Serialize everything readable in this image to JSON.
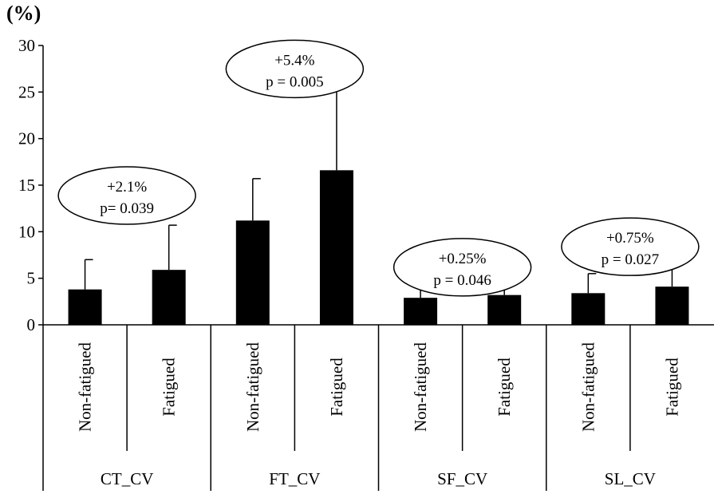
{
  "chart_data": {
    "type": "bar",
    "ylabel": "(%)",
    "ylim": [
      0,
      30
    ],
    "yticks": [
      0,
      5,
      10,
      15,
      20,
      25,
      30
    ],
    "groups": [
      {
        "name": "CT_CV",
        "annotation": {
          "change": "+2.1%",
          "p": "p= 0.039"
        },
        "bars": [
          {
            "label": "Non-fatigued",
            "value": 3.8,
            "error": 3.2
          },
          {
            "label": "Fatigued",
            "value": 5.9,
            "error": 4.8
          }
        ]
      },
      {
        "name": "FT_CV",
        "annotation": {
          "change": "+5.4%",
          "p": "p = 0.005"
        },
        "bars": [
          {
            "label": "Non-fatigued",
            "value": 11.2,
            "error": 4.5
          },
          {
            "label": "Fatigued",
            "value": 16.6,
            "error": 9.0
          }
        ]
      },
      {
        "name": "SF_CV",
        "annotation": {
          "change": "+0.25%",
          "p": "p = 0.046"
        },
        "bars": [
          {
            "label": "Non-fatigued",
            "value": 2.9,
            "error": 1.2
          },
          {
            "label": "Fatigued",
            "value": 3.2,
            "error": 1.1
          }
        ]
      },
      {
        "name": "SL_CV",
        "annotation": {
          "change": "+0.75%",
          "p": "p = 0.027"
        },
        "bars": [
          {
            "label": "Non-fatigued",
            "value": 3.4,
            "error": 2.1
          },
          {
            "label": "Fatigued",
            "value": 4.1,
            "error": 2.4
          }
        ]
      }
    ],
    "colors": {
      "bar": "#000000",
      "axis": "#000000"
    }
  }
}
